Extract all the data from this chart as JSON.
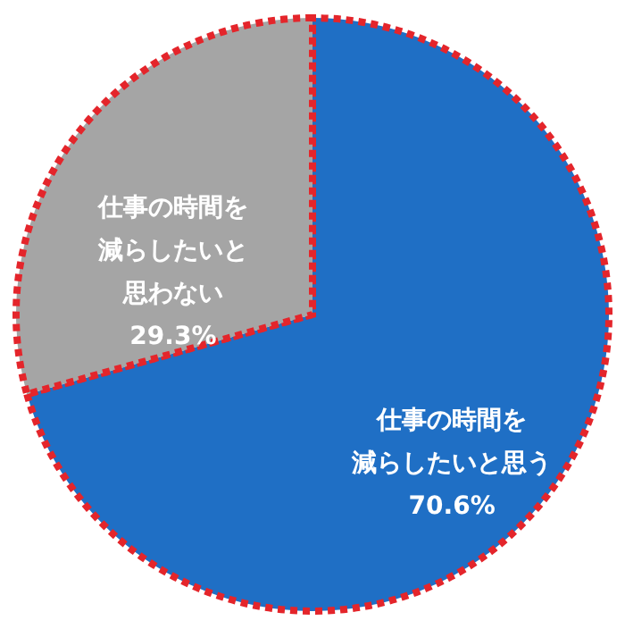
{
  "chart_data": {
    "type": "pie",
    "categories": [
      "仕事の時間を減らしたいと思う",
      "仕事の時間を減らしたいと思わない"
    ],
    "values": [
      70.6,
      29.3
    ],
    "colors": [
      "#1f6fc5",
      "#a5a5a5"
    ],
    "value_labels": [
      "70.6%",
      "29.3%"
    ]
  }
}
